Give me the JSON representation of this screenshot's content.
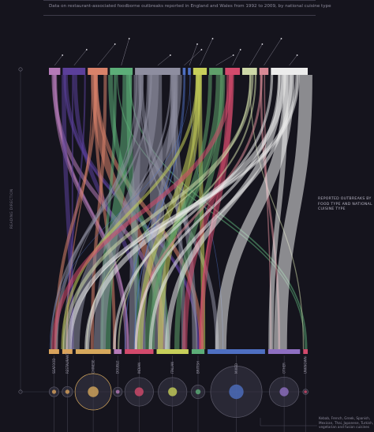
{
  "header": {
    "subtitle": "Data on restaurant-associated foodborne outbreaks reported in England and Wales from 1992 to 2009, by national cuisine type"
  },
  "side_note": {
    "text": "REPORTED OUTBREAKS BY FOOD TYPE AND NATIONAL CUISINE TYPE"
  },
  "axis": {
    "title": "READING DIRECTION"
  },
  "footnote": {
    "text": "Kebab, French, Greek, Spanish, Mexican, Thai, Japanese, Turkish, vegetarian and fusion cuisines"
  },
  "colors": {
    "background": "#15141d",
    "rule": "#3d3b4a",
    "bubble_fill": "#3a3848",
    "gold": "#d6a85c"
  },
  "chart_data": {
    "type": "sankey",
    "top_categories": [
      {
        "color": "#b57ab8",
        "weight": 2.0
      },
      {
        "color": "#5b3f9a",
        "weight": 4.0
      },
      {
        "color": "#d9826a",
        "weight": 3.5
      },
      {
        "color": "#5cae78",
        "weight": 4.0
      },
      {
        "color": "#8e8ea0",
        "weight": 8.0
      },
      {
        "color": "#4e6fc2",
        "weight": 0.5
      },
      {
        "color": "#4e6fc2",
        "weight": 0.5
      },
      {
        "color": "#c7cf5a",
        "weight": 2.4
      },
      {
        "color": "#5fa06a",
        "weight": 2.4
      },
      {
        "color": "#d34a6c",
        "weight": 2.6
      },
      {
        "color": "#cdd8a8",
        "weight": 2.6
      },
      {
        "color": "#d98a96",
        "weight": 1.6
      },
      {
        "color": "#ececec",
        "weight": 6.5
      }
    ],
    "bottom_categories": [
      {
        "label": "SEAFOOD",
        "color": "#d9a35c",
        "weight": 1.6,
        "bubble": 0.13
      },
      {
        "label": "RESTAURANT",
        "color": "#d9a35c",
        "weight": 1.6,
        "bubble": 0.14
      },
      {
        "label": "CHINESE",
        "color": "#d6a85c",
        "weight": 5.5,
        "bubble": 0.48
      },
      {
        "label": "DOUBLE",
        "color": "#b57ab8",
        "weight": 1.2,
        "bubble": 0.12
      },
      {
        "label": "INDIAN",
        "color": "#d34a6c",
        "weight": 4.5,
        "bubble": 0.38
      },
      {
        "label": "ITALIAN",
        "color": "#c7cf5a",
        "weight": 5.0,
        "bubble": 0.38
      },
      {
        "label": "BRITISH",
        "color": "#5cae78",
        "weight": 2.0,
        "bubble": 0.18
      },
      {
        "label": "MIXED",
        "color": "#4e6fc2",
        "weight": 9.0,
        "bubble": 0.68
      },
      {
        "label": "OTHER",
        "color": "#8e6fc2",
        "weight": 5.0,
        "bubble": 0.39
      },
      {
        "label": "UNKNOWN",
        "color": "#d34a6c",
        "weight": 0.7,
        "bubble": 0.07
      }
    ]
  }
}
